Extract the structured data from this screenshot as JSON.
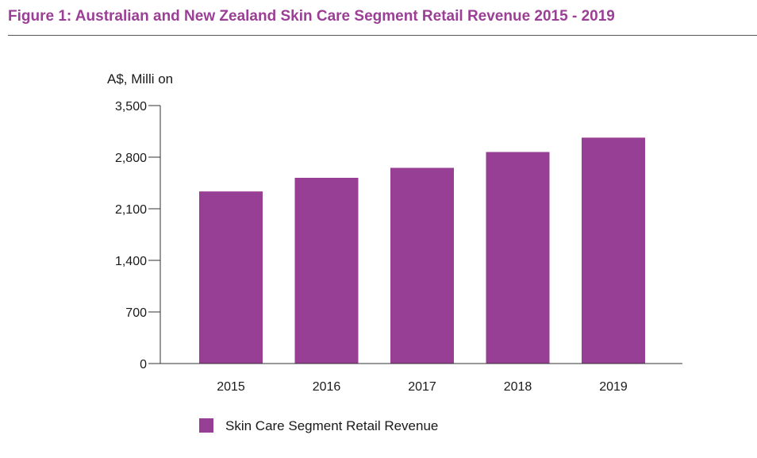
{
  "figure": {
    "title": "Figure 1: Australian and New Zealand Skin Care Segment Retail Revenue 2015 - 2019"
  },
  "colors": {
    "accent": "#9b3f96",
    "bar": "#973f94",
    "title": "#9b3f96",
    "axis": "#333333"
  },
  "chart_data": {
    "type": "bar",
    "title": "",
    "unit_label": "A$, Milli on",
    "xlabel": "",
    "ylabel": "",
    "categories": [
      "2015",
      "2016",
      "2017",
      "2018",
      "2019"
    ],
    "series": [
      {
        "name": "Skin Care Segment Retail Revenue",
        "values": [
          2335,
          2520,
          2655,
          2870,
          3065
        ]
      }
    ],
    "ylim": [
      0,
      3500
    ],
    "yticks": [
      0,
      700,
      1400,
      2100,
      2800,
      3500
    ],
    "ytick_labels": [
      "0",
      "700",
      "1,400",
      "2,100",
      "2,800",
      "3,500"
    ],
    "grid": false,
    "legend_position": "bottom-left"
  }
}
